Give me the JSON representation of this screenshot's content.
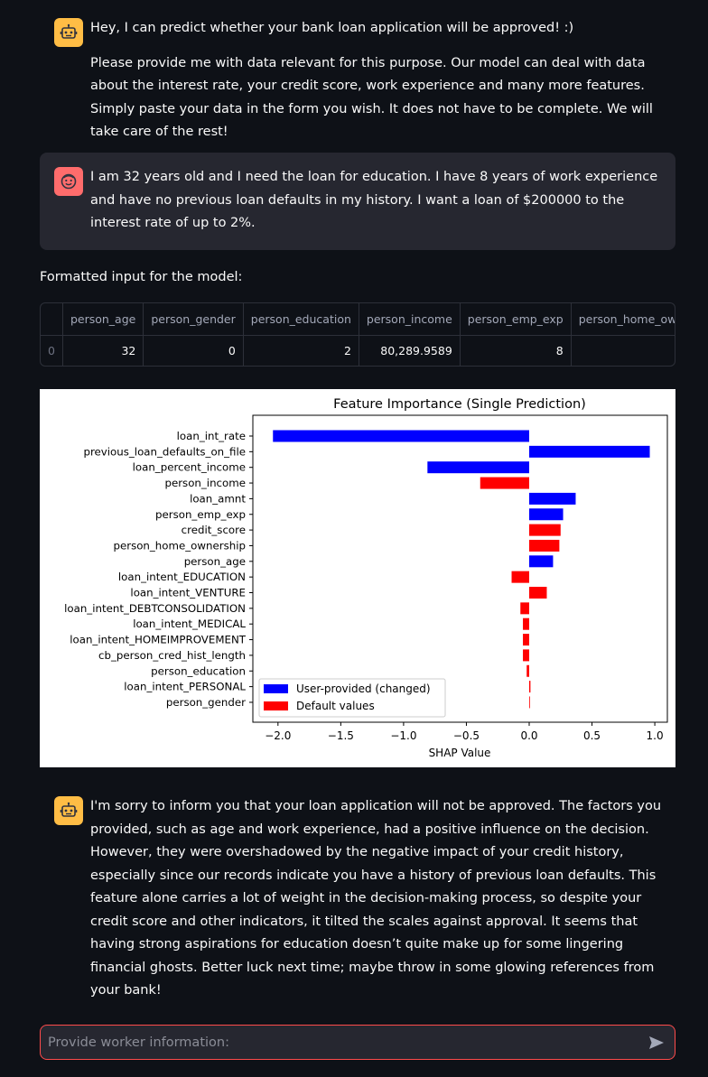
{
  "chat": {
    "bot_intro": {
      "line1": "Hey, I can predict whether your bank loan application will be approved! :)",
      "line2": "Please provide me with data relevant for this purpose. Our model can deal with data about the interest rate, your credit score, work experience and many more features. Simply paste your data in the form you wish. It does not have to be complete. We will take care of the rest!"
    },
    "user_message": "I am 32 years old and I need the loan for education. I have 8 years of work experience and have no previous loan defaults in my history. I want a loan of $200000 to the interest rate of up to 2%.",
    "formatted_caption": "Formatted input for the model:",
    "bot_reply": "I'm sorry to inform you that your loan application will not be approved. The factors you provided, such as age and work experience, had a positive influence on the decision. However, they were overshadowed by the negative impact of your credit history, especially since our records indicate you have a history of previous loan defaults. This feature alone carries a lot of weight in the decision-making process, so despite your credit score and other indicators, it tilted the scales against approval. It seems that having strong aspirations for education doesn’t quite make up for some lingering financial ghosts. Better luck next time; maybe throw in some glowing references from your bank!"
  },
  "table": {
    "columns": [
      "",
      "person_age",
      "person_gender",
      "person_education",
      "person_income",
      "person_emp_exp",
      "person_home_ownership"
    ],
    "rows": [
      [
        "0",
        "32",
        "0",
        "2",
        "80,289.9589",
        "8",
        ""
      ]
    ]
  },
  "chart_data": {
    "type": "bar",
    "orientation": "horizontal",
    "title": "Feature Importance (Single Prediction)",
    "xlabel": "SHAP Value",
    "ylabel": "",
    "xlim": [
      -2.2,
      1.1
    ],
    "xticks": [
      -2.0,
      -1.5,
      -1.0,
      -0.5,
      0.0,
      0.5,
      1.0
    ],
    "xtick_labels": [
      "−2.0",
      "−1.5",
      "−1.0",
      "−0.5",
      "0.0",
      "0.5",
      "1.0"
    ],
    "grid": false,
    "legend_position": "lower-left",
    "legend": [
      {
        "name": "User-provided (changed)",
        "color": "#0000ff"
      },
      {
        "name": "Default values",
        "color": "#ff0000"
      }
    ],
    "categories": [
      "loan_int_rate",
      "previous_loan_defaults_on_file",
      "loan_percent_income",
      "person_income",
      "loan_amnt",
      "person_emp_exp",
      "credit_score",
      "person_home_ownership",
      "person_age",
      "loan_intent_EDUCATION",
      "loan_intent_VENTURE",
      "loan_intent_DEBTCONSOLIDATION",
      "loan_intent_MEDICAL",
      "loan_intent_HOMEIMPROVEMENT",
      "cb_person_cred_hist_length",
      "person_education",
      "loan_intent_PERSONAL",
      "person_gender"
    ],
    "values": [
      -2.04,
      0.96,
      -0.81,
      -0.39,
      0.37,
      0.27,
      0.25,
      0.24,
      0.19,
      -0.14,
      0.14,
      -0.07,
      -0.05,
      -0.05,
      -0.05,
      -0.02,
      0.01,
      0.003
    ],
    "groups": [
      "user",
      "user",
      "user",
      "default",
      "user",
      "user",
      "default",
      "default",
      "user",
      "default",
      "default",
      "default",
      "default",
      "default",
      "default",
      "default",
      "default",
      "default"
    ]
  },
  "input": {
    "placeholder": "Provide worker information:",
    "value": ""
  },
  "icons": {
    "bot_avatar": "robot-face-icon",
    "user_avatar": "smiling-face-icon",
    "send": "send-arrow-icon"
  },
  "colors": {
    "bot_avatar_bg": "#ffbd45",
    "user_avatar_bg": "#ff6c6c",
    "input_border": "#ff4b4b"
  }
}
